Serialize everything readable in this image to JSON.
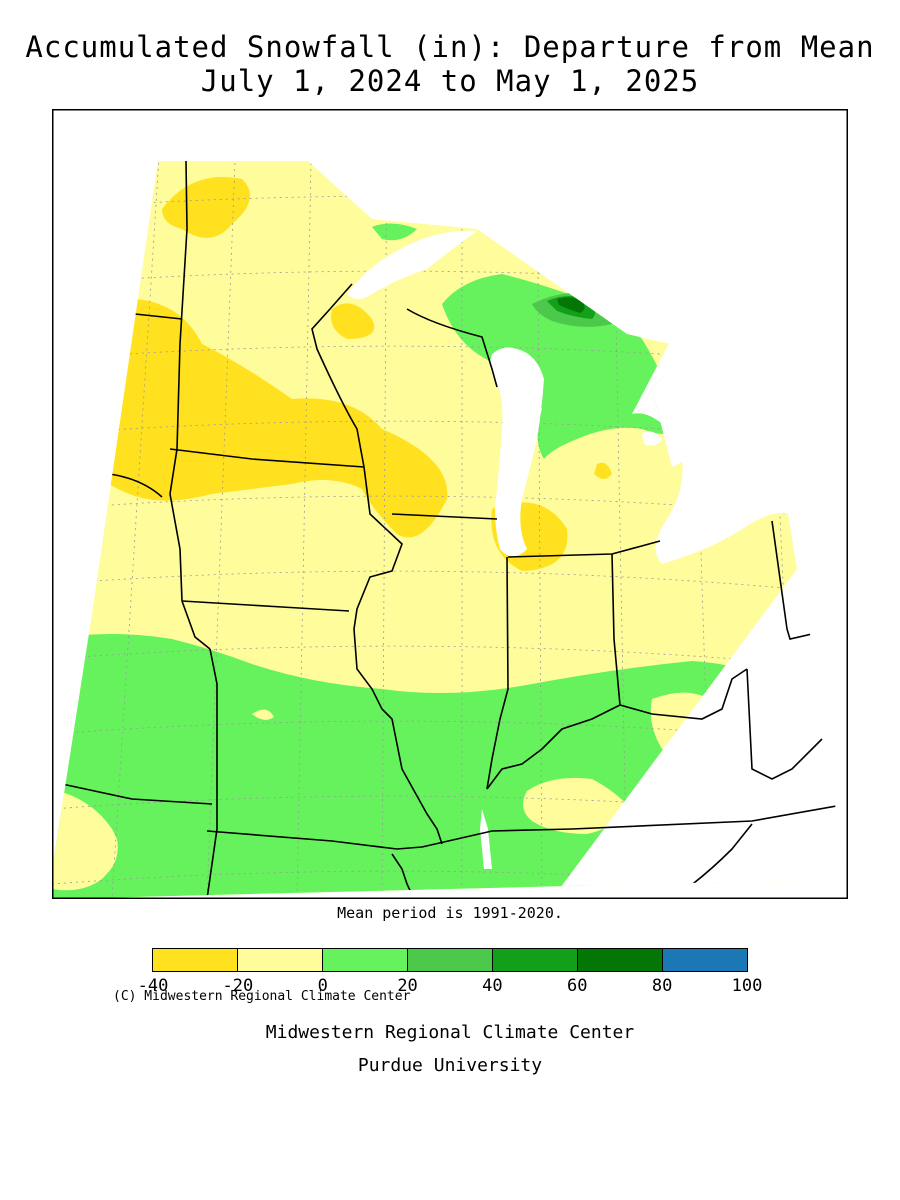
{
  "title_line1": "Accumulated Snowfall (in): Departure from Mean",
  "title_line2": "July 1, 2024 to May 1, 2025",
  "copyright": "(C) Midwestern Regional Climate Center",
  "mean_note": "Mean period is 1991-2020.",
  "legend": {
    "tick_labels": [
      "-40",
      "-20",
      "0",
      "20",
      "40",
      "60",
      "80",
      "100"
    ],
    "colors": [
      "#ffe11f",
      "#fffc9c",
      "#66f25c",
      "#4cc84a",
      "#12a01a",
      "#047606",
      "#1c78b4"
    ]
  },
  "credit_line1": "Midwestern Regional Climate Center",
  "credit_line2": "Purdue University",
  "map_colors": {
    "below_-20": "#ffe11f",
    "-20_to_0": "#fffc9c",
    "0_to_20": "#66f25c",
    "20_to_40": "#4cc84a",
    "40_to_60": "#12a01a",
    "60_to_80": "#047606",
    "water": "#ffffff",
    "borders": "#000000",
    "grid": "#9a9a9a"
  }
}
